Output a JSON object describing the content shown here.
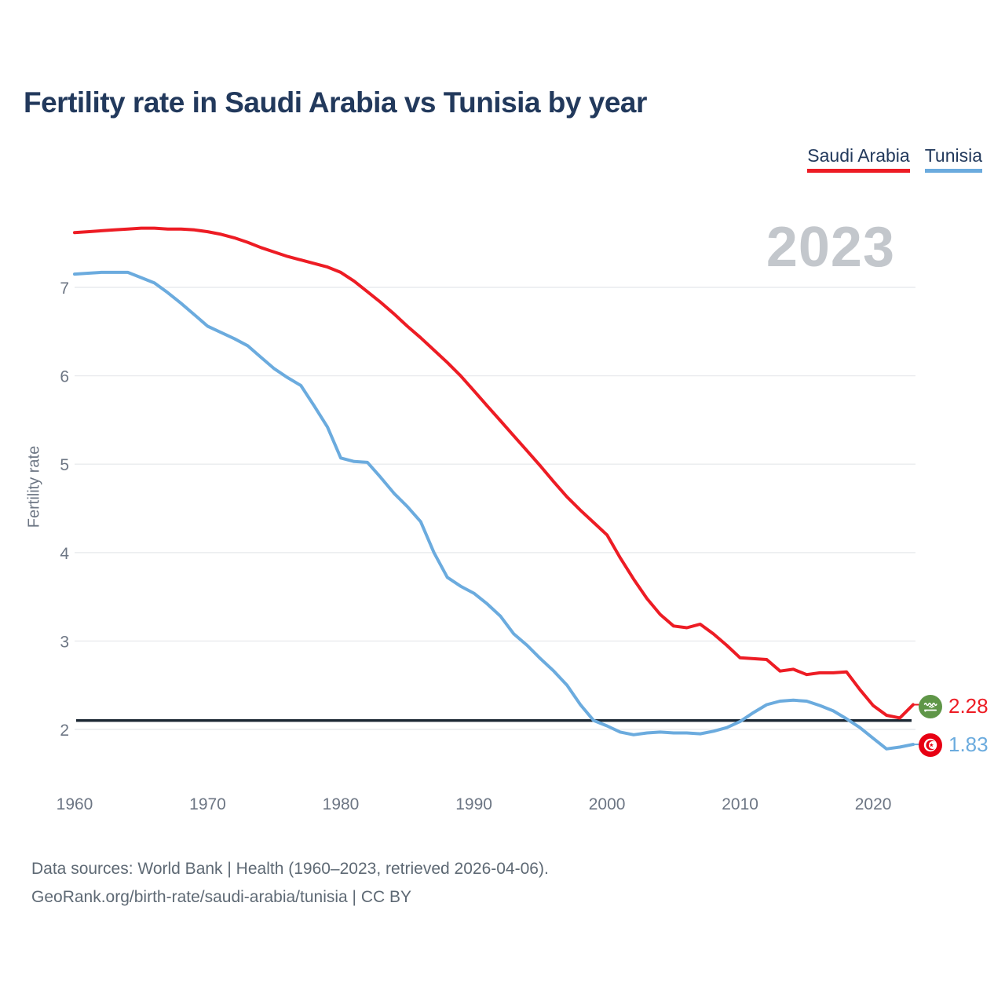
{
  "title": "Fertility rate in Saudi Arabia vs Tunisia by year",
  "watermark": "2023",
  "legend": [
    {
      "label": "Saudi Arabia",
      "color": "#ed1c24"
    },
    {
      "label": "Tunisia",
      "color": "#6babde"
    }
  ],
  "y_axis": {
    "label": "Fertility rate",
    "ticks": [
      2,
      3,
      4,
      5,
      6,
      7
    ]
  },
  "x_axis": {
    "ticks": [
      1960,
      1970,
      1980,
      1990,
      2000,
      2010,
      2020
    ]
  },
  "reference_line": {
    "value": 2.1,
    "color": "#1b2733"
  },
  "end_labels": {
    "saudi_value": "2.28",
    "tunisia_value": "1.83",
    "saudi_flag": "saudi-arabia-flag",
    "tunisia_flag": "tunisia-flag"
  },
  "footer": {
    "line1": "Data sources: World Bank | Health (1960–2023, retrieved 2026-04-06).",
    "line2": "GeoRank.org/birth-rate/saudi-arabia/tunisia | CC BY"
  },
  "chart_data": {
    "type": "line",
    "title": "Fertility rate in Saudi Arabia vs Tunisia by year",
    "xlabel": "",
    "ylabel": "Fertility rate",
    "x_start": 1960,
    "x_end": 2023,
    "x_step": 1,
    "ylim": [
      1.6,
      7.9
    ],
    "yticks": [
      2,
      3,
      4,
      5,
      6,
      7
    ],
    "grid": "horizontal",
    "legend_position": "top-right",
    "reference_line_value": 2.1,
    "series": [
      {
        "name": "Saudi Arabia",
        "color": "#ed1c24",
        "last_value": 2.28,
        "values": [
          7.62,
          7.63,
          7.64,
          7.65,
          7.66,
          7.67,
          7.67,
          7.66,
          7.66,
          7.65,
          7.63,
          7.6,
          7.56,
          7.51,
          7.45,
          7.4,
          7.35,
          7.31,
          7.27,
          7.23,
          7.17,
          7.07,
          6.95,
          6.83,
          6.7,
          6.56,
          6.43,
          6.29,
          6.15,
          6.0,
          5.83,
          5.66,
          5.49,
          5.32,
          5.15,
          4.98,
          4.8,
          4.63,
          4.48,
          4.34,
          4.2,
          3.94,
          3.7,
          3.48,
          3.3,
          3.17,
          3.15,
          3.19,
          3.08,
          2.95,
          2.81,
          2.8,
          2.79,
          2.66,
          2.68,
          2.62,
          2.64,
          2.64,
          2.65,
          2.45,
          2.27,
          2.16,
          2.13,
          2.28
        ]
      },
      {
        "name": "Tunisia",
        "color": "#6babde",
        "last_value": 1.83,
        "values": [
          7.15,
          7.16,
          7.17,
          7.17,
          7.17,
          7.11,
          7.05,
          6.94,
          6.82,
          6.69,
          6.56,
          6.49,
          6.42,
          6.34,
          6.21,
          6.08,
          5.98,
          5.89,
          5.66,
          5.42,
          5.07,
          5.03,
          5.02,
          4.85,
          4.67,
          4.52,
          4.35,
          4.0,
          3.72,
          3.62,
          3.54,
          3.42,
          3.28,
          3.08,
          2.95,
          2.8,
          2.66,
          2.5,
          2.28,
          2.1,
          2.04,
          1.97,
          1.94,
          1.96,
          1.97,
          1.96,
          1.96,
          1.95,
          1.98,
          2.02,
          2.09,
          2.19,
          2.28,
          2.32,
          2.33,
          2.32,
          2.27,
          2.21,
          2.12,
          2.02,
          1.9,
          1.78,
          1.8,
          1.83
        ]
      }
    ]
  }
}
